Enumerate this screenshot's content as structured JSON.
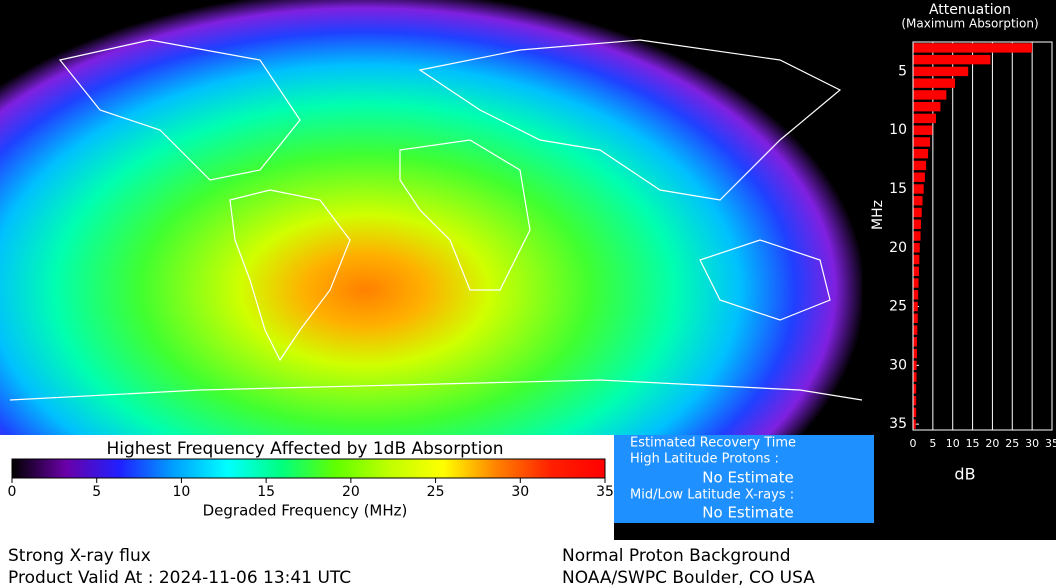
{
  "chart_data": [
    {
      "type": "hbar",
      "title": "Attenuation",
      "subtitle": "(Maximum Absorption)",
      "y_label": "MHz",
      "x_label": "dB",
      "y": [
        3,
        4,
        5,
        6,
        7,
        8,
        9,
        10,
        11,
        12,
        13,
        14,
        15,
        16,
        17,
        18,
        19,
        20,
        21,
        22,
        23,
        24,
        25,
        26,
        27,
        28,
        29,
        30,
        31,
        32,
        33,
        34,
        35
      ],
      "values": [
        30,
        19.5,
        13.9,
        10.6,
        8.4,
        6.9,
        5.8,
        4.9,
        4.3,
        3.8,
        3.3,
        3.0,
        2.7,
        2.4,
        2.2,
        2.0,
        1.9,
        1.7,
        1.6,
        1.5,
        1.4,
        1.3,
        1.2,
        1.2,
        1.1,
        1.0,
        1.0,
        0.9,
        0.9,
        0.8,
        0.8,
        0.8,
        0.7
      ],
      "color": "#ff0000",
      "ylim": [
        2.5,
        35.5
      ],
      "yticks": [
        5,
        10,
        15,
        20,
        25,
        30,
        35
      ],
      "xlim": [
        0,
        35
      ],
      "xticks": [
        0,
        5,
        10,
        15,
        20,
        25,
        30,
        35
      ],
      "grid": true
    },
    {
      "type": "colorbar",
      "title": "Highest Frequency Affected by 1dB Absorption",
      "x_label": "Degraded Frequency (MHz)",
      "xlim": [
        0,
        35
      ],
      "xticks": [
        0,
        5,
        10,
        15,
        20,
        25,
        30,
        35
      ],
      "colors": [
        "#000000",
        "#6a00a8",
        "#2020ff",
        "#00a0ff",
        "#00ffff",
        "#00ff80",
        "#60ff00",
        "#c0ff00",
        "#ffff00",
        "#ff8000",
        "#ff2000",
        "#ff0000"
      ]
    }
  ],
  "info_box": {
    "heading": "Estimated Recovery Time",
    "line1": "High Latitude Protons :",
    "line2": "No Estimate",
    "line3": "Mid/Low Latitude X-rays :",
    "line4": "No Estimate"
  },
  "footer": {
    "left1": "Strong X-ray flux",
    "left2": "Product Valid At : 2024-11-06 13:41 UTC",
    "right1": "Normal Proton Background",
    "right2": "NOAA/SWPC Boulder, CO USA"
  }
}
